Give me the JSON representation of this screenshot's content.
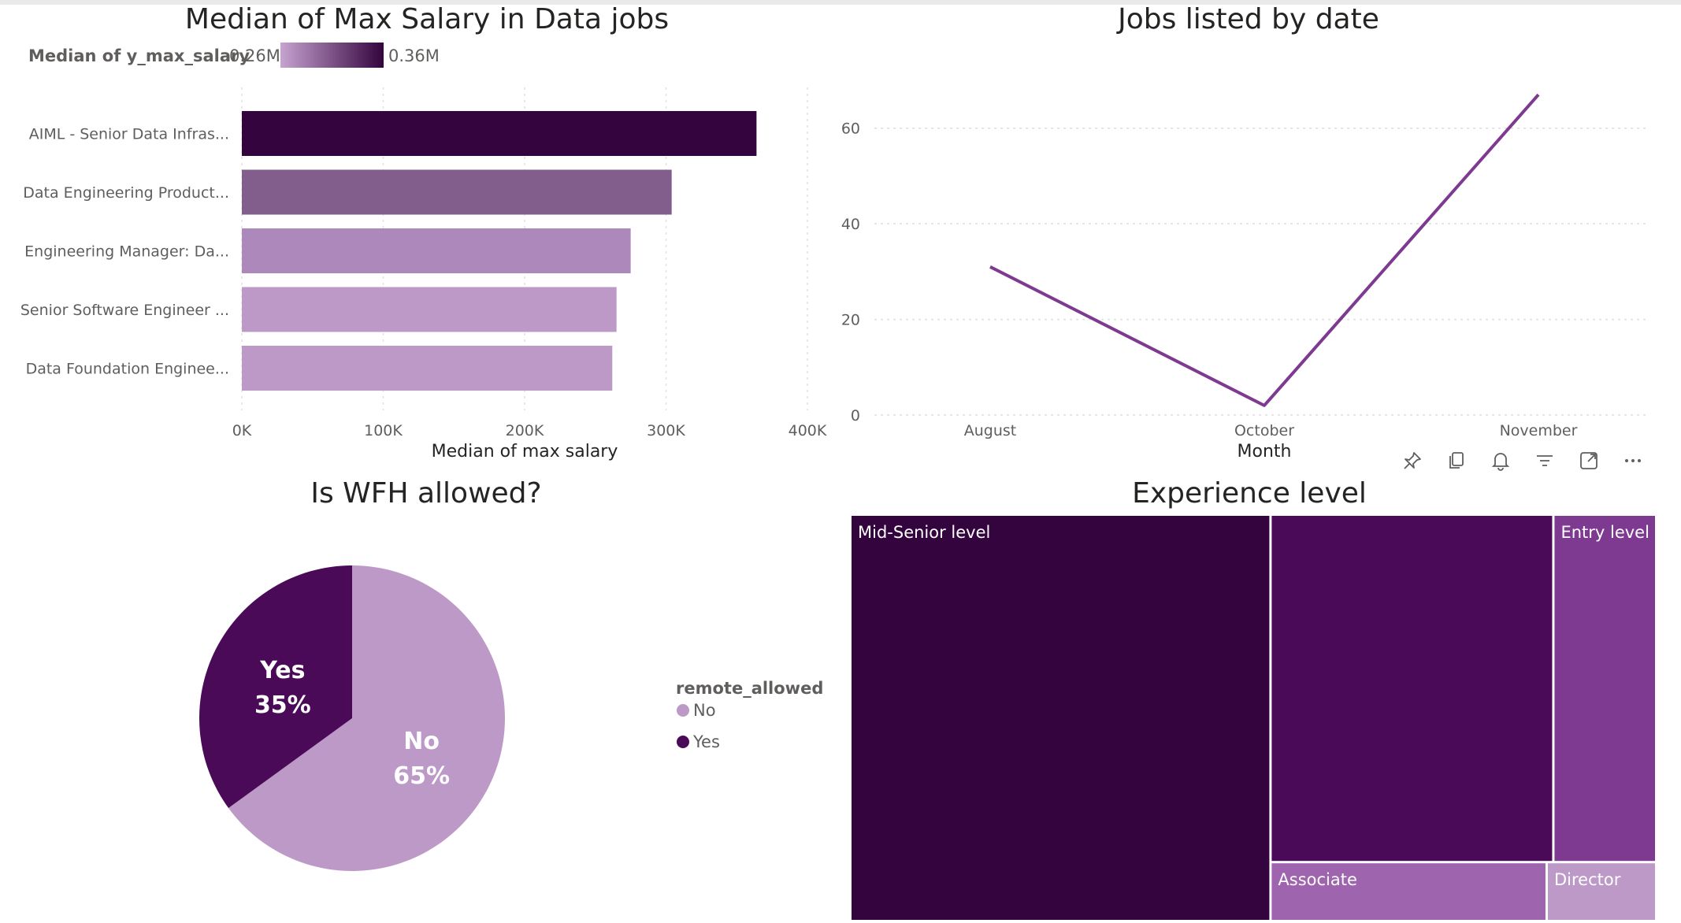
{
  "colors": {
    "darkest": "#33043d",
    "dark": "#4a0a58",
    "mid": "#7e3a91",
    "medium": "#825e8c",
    "light": "#ad88ba",
    "lighter": "#bd99c8",
    "grid": "#d8d8d8"
  },
  "chart_data": [
    {
      "type": "bar",
      "orientation": "horizontal",
      "title": "Median of Max Salary in Data jobs",
      "legend": {
        "title": "Median of y_max_salary",
        "min_label": "0.26M",
        "max_label": "0.36M"
      },
      "categories": [
        "AIML - Senior Data Infras...",
        "Data Engineering Product...",
        "Engineering Manager: Da...",
        "Senior Software Engineer ...",
        "Data Foundation Enginee..."
      ],
      "values": [
        364000,
        304000,
        275000,
        265000,
        262000
      ],
      "xlabel": "Median of max salary",
      "ylabel": "",
      "xlim": [
        0,
        400000
      ],
      "xticks": [
        "0K",
        "100K",
        "200K",
        "300K",
        "400K"
      ],
      "bar_colors": [
        "#33043d",
        "#825e8c",
        "#ad88ba",
        "#bd99c8",
        "#bd99c8"
      ],
      "grid": true
    },
    {
      "type": "line",
      "title": "Jobs listed by date",
      "x": [
        "August",
        "October",
        "November"
      ],
      "values": [
        31,
        2,
        67
      ],
      "xlabel": "Month",
      "ylabel": "",
      "ylim": [
        0,
        70
      ],
      "yticks": [
        "0",
        "20",
        "40",
        "60"
      ],
      "grid": true
    },
    {
      "type": "pie",
      "title": "Is WFH allowed?",
      "legend": {
        "title": "remote_allowed",
        "placement": "right"
      },
      "slices": [
        {
          "label": "No",
          "value": 65,
          "display": "65%",
          "color": "#bd99c8"
        },
        {
          "label": "Yes",
          "value": 35,
          "display": "35%",
          "color": "#4a0a58"
        }
      ]
    },
    {
      "type": "treemap",
      "title": "Experience level",
      "items": [
        {
          "label": "Mid-Senior level",
          "value": 52,
          "color": "#33043d"
        },
        {
          "label": "",
          "value": 30,
          "color": "#4a0a58"
        },
        {
          "label": "Entry level",
          "value": 11,
          "color": "#7e3a91"
        },
        {
          "label": "Associate",
          "value": 5,
          "color": "#9e64ad"
        },
        {
          "label": "Director",
          "value": 2,
          "color": "#bd99c8"
        }
      ]
    }
  ],
  "toolbar": {
    "icons": [
      "pin-icon",
      "copy-icon",
      "bell-icon",
      "filter-icon",
      "focus-mode-icon",
      "more-options-icon"
    ]
  }
}
